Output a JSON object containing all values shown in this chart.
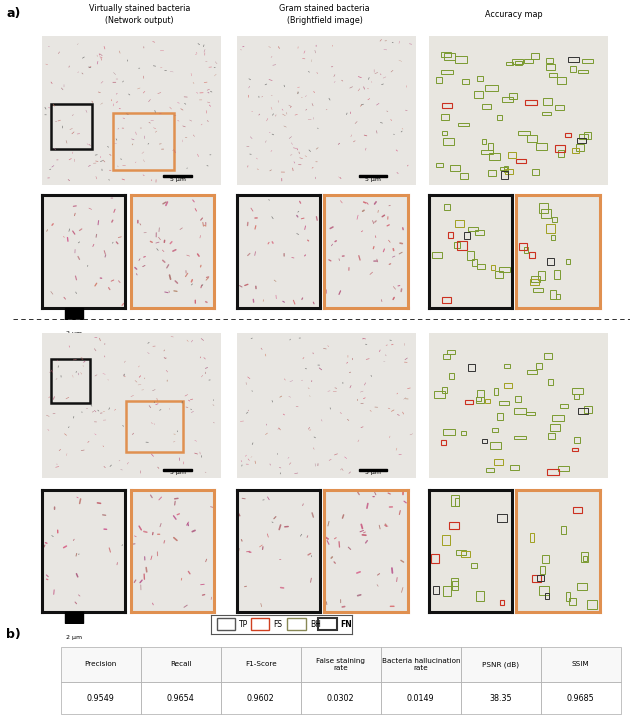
{
  "title_a": "a)",
  "title_b": "b)",
  "col_titles": [
    "Virtually stained bacteria\n(Network output)",
    "Gram stained bacteria\n(Brightfield image)",
    "Accuracy map"
  ],
  "legend_items": [
    "TP",
    "FS",
    "BH",
    "FN"
  ],
  "legend_edge_colors": [
    "#555555",
    "#d04020",
    "#888855",
    "#333333"
  ],
  "table_headers": [
    "Precision",
    "Recall",
    "F1-Score",
    "False staining\nrate",
    "Bacteria hallucination\nrate",
    "PSNR (dB)",
    "SSIM"
  ],
  "table_values": [
    "0.9549",
    "0.9654",
    "0.9602",
    "0.0302",
    "0.0149",
    "38.35",
    "0.9685"
  ],
  "scale_bar_text1": "5 μm",
  "scale_bar_text2": "2 μm",
  "micro_bg": "#e8e6e2",
  "fig_bg": "#ffffff",
  "orange_border": "#e09050",
  "black_border": "#1a1a1a",
  "acc_bg": "#e8e6e0",
  "box_green": "#7a9a30",
  "box_red": "#cc3020",
  "box_olive": "#a0a020",
  "box_black": "#333333"
}
